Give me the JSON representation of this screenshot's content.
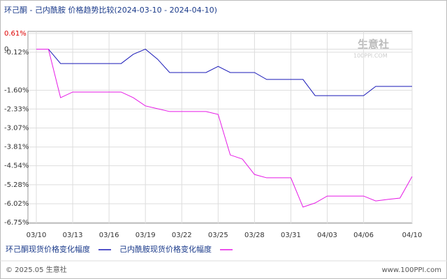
{
  "chart_data": {
    "type": "line",
    "title": "环己酮 - 己内酰胺 价格趋势比较(2024-03-10 - 2024-04-10)",
    "watermark": "生意社",
    "watermark_url": "100PPI.COM",
    "footer_left": "© 2025.05 生意社",
    "footer_right": "www.100PPI.com",
    "categories": [
      "03/10",
      null,
      null,
      "03/13",
      null,
      null,
      "03/16",
      null,
      null,
      "03/19",
      null,
      null,
      "03/22",
      null,
      null,
      "03/25",
      null,
      null,
      "03/28",
      null,
      null,
      "03/31",
      null,
      null,
      "04/03",
      null,
      null,
      "04/06",
      null,
      null,
      null,
      "04/10"
    ],
    "series": [
      {
        "name": "环己酮现货价格变化幅度",
        "color": "#1a1ab8",
        "values": [
          0,
          0,
          -0.56,
          -0.56,
          -0.56,
          -0.56,
          -0.56,
          -0.56,
          -0.2,
          0,
          -0.39,
          -0.91,
          -0.91,
          -0.91,
          -0.91,
          -0.67,
          -0.91,
          -0.91,
          -0.91,
          -1.18,
          -1.18,
          -1.18,
          -1.18,
          -1.81,
          -1.81,
          -1.81,
          -1.81,
          -1.81,
          -1.45,
          -1.45,
          -1.45,
          -1.45
        ]
      },
      {
        "name": "己内酰胺现货价格变化幅度",
        "color": "#e619e6",
        "values": [
          0,
          0,
          -1.89,
          -1.67,
          -1.67,
          -1.67,
          -1.67,
          -1.67,
          -1.89,
          -2.21,
          -2.32,
          -2.43,
          -2.43,
          -2.43,
          -2.43,
          -2.54,
          -4.12,
          -4.28,
          -4.88,
          -5.01,
          -5.01,
          -5.01,
          -6.15,
          -5.99,
          -5.72,
          -5.72,
          -5.72,
          -5.72,
          -5.91,
          -5.85,
          -5.8,
          -4.96
        ]
      }
    ],
    "ylim": [
      -6.75,
      0.61
    ],
    "yticks": [
      {
        "value": 0.61,
        "label": "0.61%"
      },
      {
        "value": -0.12,
        "label": "-0.12%"
      },
      0,
      {
        "value": -1.6,
        "label": "-1.60%"
      },
      {
        "value": -2.33,
        "label": "-2.33%"
      },
      {
        "value": -3.07,
        "label": "-3.07%"
      },
      {
        "value": -3.81,
        "label": "-3.81%"
      },
      {
        "value": -4.54,
        "label": "-4.54%"
      },
      {
        "value": -5.28,
        "label": "-5.28%"
      },
      {
        "value": -6.02,
        "label": "-6.02%"
      },
      {
        "value": -6.75,
        "label": "-6.75%"
      }
    ],
    "grid": true
  }
}
